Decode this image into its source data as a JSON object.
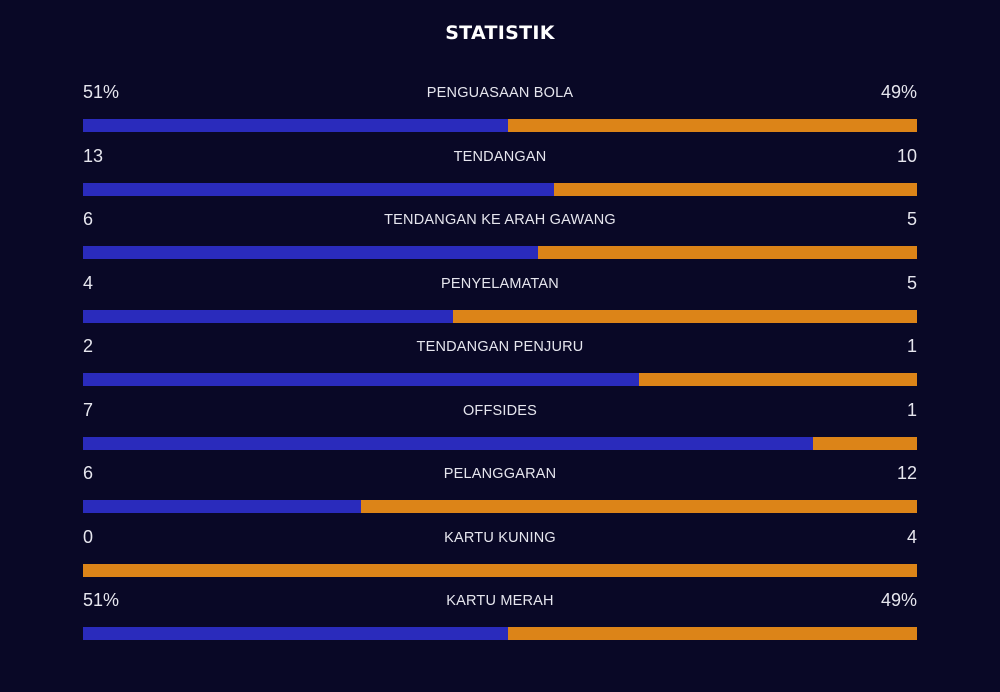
{
  "title": "STATISTIK",
  "colors": {
    "background": "#090826",
    "home": "#2a2bbc",
    "away": "#dc8418"
  },
  "stats": [
    {
      "label": "PENGUASAAN BOLA",
      "home": "51%",
      "away": "49%",
      "home_share": 0.51
    },
    {
      "label": "TENDANGAN",
      "home": "13",
      "away": "10",
      "home_share": 0.565
    },
    {
      "label": "TENDANGAN KE ARAH GAWANG",
      "home": "6",
      "away": "5",
      "home_share": 0.545
    },
    {
      "label": "PENYELAMATAN",
      "home": "4",
      "away": "5",
      "home_share": 0.444
    },
    {
      "label": "TENDANGAN PENJURU",
      "home": "2",
      "away": "1",
      "home_share": 0.667
    },
    {
      "label": "OFFSIDES",
      "home": "7",
      "away": "1",
      "home_share": 0.875
    },
    {
      "label": "PELANGGARAN",
      "home": "6",
      "away": "12",
      "home_share": 0.333
    },
    {
      "label": "KARTU KUNING",
      "home": "0",
      "away": "4",
      "home_share": 0.0
    },
    {
      "label": "KARTU MERAH",
      "home": "51%",
      "away": "49%",
      "home_share": 0.51
    }
  ]
}
